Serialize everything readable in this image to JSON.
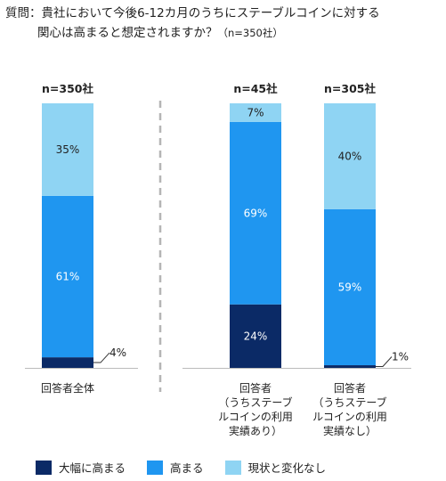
{
  "question": {
    "prefix": "質問：",
    "line1": "貴社において今後6-12カ月のうちにステーブルコインに対する",
    "line2": "関心は高まると想定されますか？",
    "sample": "（n=350社）"
  },
  "colors": {
    "high_strong": "#0b2a66",
    "high": "#1f96f0",
    "no_change": "#8fd4f3",
    "divider": "#b5b5b5"
  },
  "chart_data": {
    "type": "bar",
    "stacked": true,
    "percent_scale": true,
    "ylim": [
      0,
      100
    ],
    "categories": [
      {
        "label_lines": [
          "回答者全体"
        ],
        "n_label": "n=350社"
      },
      {
        "label_lines": [
          "回答者",
          "（うちステーブ",
          "ルコインの利用",
          "実績あり）"
        ],
        "n_label": "n=45社"
      },
      {
        "label_lines": [
          "回答者",
          "（うちステーブ",
          "ルコインの利用",
          "実績なし）"
        ],
        "n_label": "n=305社"
      }
    ],
    "series": [
      {
        "name": "大幅に高まる",
        "values": [
          4,
          24,
          1
        ],
        "labels": [
          "4%",
          "24%",
          "1%"
        ]
      },
      {
        "name": "高まる",
        "values": [
          61,
          69,
          59
        ],
        "labels": [
          "61%",
          "69%",
          "59%"
        ]
      },
      {
        "name": "現状と変化なし",
        "values": [
          35,
          7,
          40
        ],
        "labels": [
          "35%",
          "7%",
          "40%"
        ]
      }
    ],
    "legend": "bottom",
    "grid": false
  }
}
